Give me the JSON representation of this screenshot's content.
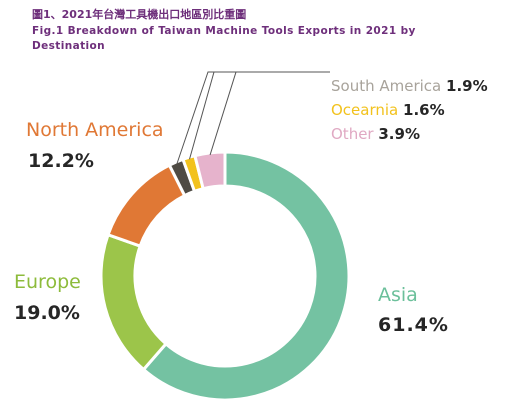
{
  "title_zh": "圖1、2021年台灣工具機出口地區別比重圖",
  "title_en": "Fig.1   Breakdown of Taiwan Machine Tools Exports in 2021 by Destination",
  "chart_data": {
    "type": "pie",
    "donut": true,
    "start": "12 o'clock, clockwise",
    "slices": [
      {
        "label": "Asia",
        "value": 61.4,
        "value_label": "61.4%",
        "color": "#74c2a2"
      },
      {
        "label": "Europe",
        "value": 19.0,
        "value_label": "19.0%",
        "color": "#9cc54a"
      },
      {
        "label": "North America",
        "value": 12.2,
        "value_label": "12.2%",
        "color": "#e07835"
      },
      {
        "label": "South America",
        "value": 1.9,
        "value_label": "1.9%",
        "color": "#4f4b44"
      },
      {
        "label": "Ocearnia",
        "value": 1.6,
        "value_label": "1.6%",
        "color": "#f2c21d"
      },
      {
        "label": "Other",
        "value": 3.9,
        "value_label": "3.9%",
        "color": "#e6b3cc"
      }
    ],
    "label_colors": {
      "Asia": "#6cc09b",
      "Europe": "#8dbb3b",
      "North America": "#e07835",
      "South America": "#a8a39b",
      "Ocearnia": "#f2c21d",
      "Other": "#e0a9c3"
    }
  }
}
